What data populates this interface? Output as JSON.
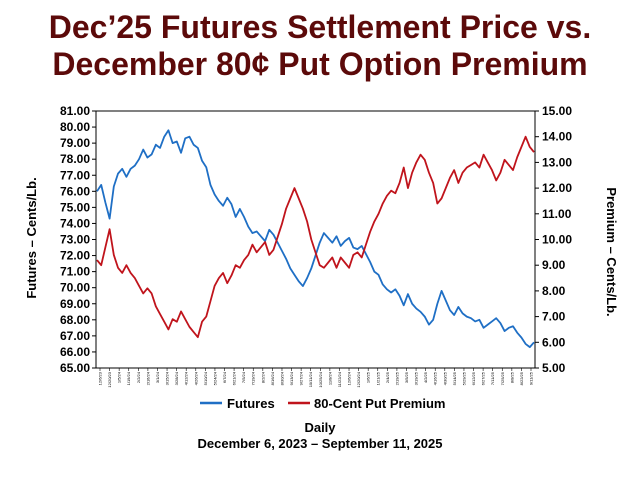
{
  "title_line1": "Dec’25 Futures Settlement Price vs.",
  "title_line2": "December 80¢ Put Option Premium",
  "chart_data": {
    "type": "line",
    "xlabel": "Daily",
    "date_range": "December 6, 2023 – September 11, 2025",
    "ylabel_left": "Futures – Cents/Lb.",
    "ylabel_right": "Premium – Cents/Lb.",
    "ylim_left": [
      65.0,
      81.0
    ],
    "ylim_right": [
      5.0,
      15.0
    ],
    "yticks_left": [
      "65.00",
      "66.00",
      "67.00",
      "68.00",
      "69.00",
      "70.00",
      "71.00",
      "72.00",
      "73.00",
      "74.00",
      "75.00",
      "76.00",
      "77.00",
      "78.00",
      "79.00",
      "80.00",
      "81.00"
    ],
    "yticks_right": [
      "5.00",
      "6.00",
      "7.00",
      "8.00",
      "9.00",
      "10.00",
      "11.00",
      "12.00",
      "13.00",
      "14.00",
      "15.00"
    ],
    "xticks": [
      "12/6/23",
      "12/20/23",
      "1/5/24",
      "1/19/24",
      "2/2/24",
      "2/16/24",
      "3/1/24",
      "3/15/24",
      "3/28/24",
      "4/12/24",
      "4/26/24",
      "5/10/24",
      "5/24/24",
      "6/7/24",
      "6/21/24",
      "7/5/24",
      "7/19/24",
      "8/2/24",
      "8/16/24",
      "8/30/24",
      "9/13/24",
      "9/27/24",
      "10/11/24",
      "10/25/24",
      "11/8/24",
      "11/22/24",
      "12/6/24",
      "12/20/24",
      "1/6/25",
      "1/21/25",
      "2/4/25",
      "2/19/25",
      "3/5/25",
      "3/19/25",
      "4/2/25",
      "4/16/25",
      "4/30/25",
      "5/14/25",
      "5/29/25",
      "6/12/25",
      "6/27/25",
      "7/11/25",
      "7/25/25",
      "8/8/25",
      "8/22/25",
      "9/11/25"
    ],
    "legend_position": "bottom",
    "series": [
      {
        "name": "Futures",
        "color": "#1f6fc5",
        "axis": "left",
        "values": [
          76.0,
          76.4,
          75.3,
          74.3,
          76.3,
          77.1,
          77.4,
          76.9,
          77.4,
          77.6,
          78.0,
          78.6,
          78.1,
          78.3,
          78.9,
          78.7,
          79.4,
          79.8,
          79.0,
          79.1,
          78.4,
          79.3,
          79.4,
          78.9,
          78.7,
          77.9,
          77.5,
          76.4,
          75.8,
          75.4,
          75.1,
          75.6,
          75.2,
          74.4,
          74.9,
          74.4,
          73.8,
          73.4,
          73.5,
          73.2,
          72.9,
          73.6,
          73.3,
          72.8,
          72.3,
          71.8,
          71.2,
          70.8,
          70.4,
          70.1,
          70.6,
          71.2,
          72.0,
          72.8,
          73.4,
          73.1,
          72.8,
          73.2,
          72.6,
          72.9,
          73.1,
          72.5,
          72.4,
          72.6,
          72.1,
          71.6,
          71.0,
          70.8,
          70.2,
          69.9,
          69.7,
          69.9,
          69.5,
          68.9,
          69.6,
          69.0,
          68.7,
          68.5,
          68.2,
          67.7,
          68.0,
          69.0,
          69.8,
          69.2,
          68.6,
          68.3,
          68.8,
          68.4,
          68.2,
          68.1,
          67.9,
          68.0,
          67.5,
          67.7,
          67.9,
          68.1,
          67.8,
          67.3,
          67.5,
          67.6,
          67.2,
          66.9,
          66.5,
          66.3,
          66.6
        ]
      },
      {
        "name": "80-Cent Put Premium",
        "color": "#c0141c",
        "axis": "right",
        "values": [
          9.2,
          9.0,
          9.7,
          10.4,
          9.4,
          8.9,
          8.7,
          9.0,
          8.7,
          8.5,
          8.2,
          7.9,
          8.1,
          7.9,
          7.4,
          7.1,
          6.8,
          6.5,
          6.9,
          6.8,
          7.2,
          6.9,
          6.6,
          6.4,
          6.2,
          6.8,
          7.0,
          7.6,
          8.2,
          8.5,
          8.7,
          8.3,
          8.6,
          9.0,
          8.9,
          9.2,
          9.4,
          9.8,
          9.5,
          9.7,
          9.9,
          9.4,
          9.6,
          10.1,
          10.6,
          11.2,
          11.6,
          12.0,
          11.6,
          11.2,
          10.7,
          10.0,
          9.5,
          9.0,
          8.9,
          9.1,
          9.3,
          8.9,
          9.3,
          9.1,
          8.9,
          9.4,
          9.5,
          9.3,
          9.8,
          10.3,
          10.7,
          11.0,
          11.4,
          11.7,
          11.9,
          11.8,
          12.2,
          12.8,
          12.0,
          12.6,
          13.0,
          13.3,
          13.1,
          12.6,
          12.2,
          11.4,
          11.6,
          12.0,
          12.4,
          12.7,
          12.2,
          12.6,
          12.8,
          12.9,
          13.0,
          12.8,
          13.3,
          13.0,
          12.7,
          12.3,
          12.6,
          13.1,
          12.9,
          12.7,
          13.2,
          13.6,
          14.0,
          13.6,
          13.4
        ]
      }
    ]
  }
}
